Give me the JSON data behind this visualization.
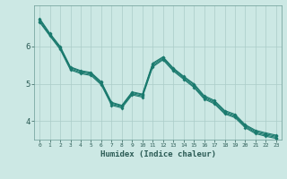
{
  "xlabel": "Humidex (Indice chaleur)",
  "bg_color": "#cce8e4",
  "line_color": "#1a7a6e",
  "grid_color": "#aaccc8",
  "text_color": "#2a5a54",
  "xlim": [
    -0.5,
    23.5
  ],
  "ylim": [
    3.5,
    7.1
  ],
  "yticks": [
    4,
    5,
    6
  ],
  "xticks": [
    0,
    1,
    2,
    3,
    4,
    5,
    6,
    7,
    8,
    9,
    10,
    11,
    12,
    13,
    14,
    15,
    16,
    17,
    18,
    19,
    20,
    21,
    22,
    23
  ],
  "line1_x": [
    0,
    1,
    2,
    3,
    4,
    5,
    6,
    7,
    8,
    9,
    10,
    11,
    12,
    13,
    14,
    15,
    16,
    17,
    18,
    19,
    20,
    21,
    22,
    23
  ],
  "line1_y": [
    6.75,
    6.35,
    6.0,
    5.45,
    5.35,
    5.3,
    5.05,
    4.5,
    4.42,
    4.78,
    4.72,
    5.55,
    5.72,
    5.42,
    5.2,
    5.0,
    4.68,
    4.55,
    4.28,
    4.18,
    3.9,
    3.75,
    3.68,
    3.62
  ],
  "line2_x": [
    0,
    1,
    2,
    3,
    4,
    5,
    6,
    7,
    8,
    9,
    10,
    11,
    12,
    13,
    14,
    15,
    16,
    17,
    18,
    19,
    20,
    21,
    22,
    23
  ],
  "line2_y": [
    6.72,
    6.33,
    5.98,
    5.43,
    5.33,
    5.28,
    5.03,
    4.48,
    4.4,
    4.76,
    4.7,
    5.52,
    5.7,
    5.4,
    5.18,
    4.97,
    4.65,
    4.52,
    4.25,
    4.15,
    3.88,
    3.72,
    3.65,
    3.59
  ],
  "line3_x": [
    0,
    1,
    2,
    3,
    4,
    5,
    6,
    7,
    8,
    9,
    10,
    11,
    12,
    13,
    14,
    15,
    16,
    17,
    18,
    19,
    20,
    21,
    22,
    23
  ],
  "line3_y": [
    6.68,
    6.3,
    5.95,
    5.4,
    5.3,
    5.25,
    5.0,
    4.45,
    4.38,
    4.73,
    4.67,
    5.48,
    5.67,
    5.37,
    5.15,
    4.93,
    4.62,
    4.49,
    4.22,
    4.12,
    3.85,
    3.69,
    3.62,
    3.56
  ],
  "line4_x": [
    0,
    1,
    2,
    3,
    4,
    5,
    6,
    7,
    8,
    9,
    10,
    11,
    12,
    13,
    14,
    15,
    16,
    17,
    18,
    19,
    20,
    21,
    22,
    23
  ],
  "line4_y": [
    6.65,
    6.28,
    5.92,
    5.37,
    5.27,
    5.22,
    4.97,
    4.42,
    4.35,
    4.7,
    4.64,
    5.45,
    5.64,
    5.34,
    5.12,
    4.9,
    4.59,
    4.46,
    4.19,
    4.09,
    3.82,
    3.66,
    3.59,
    3.53
  ]
}
